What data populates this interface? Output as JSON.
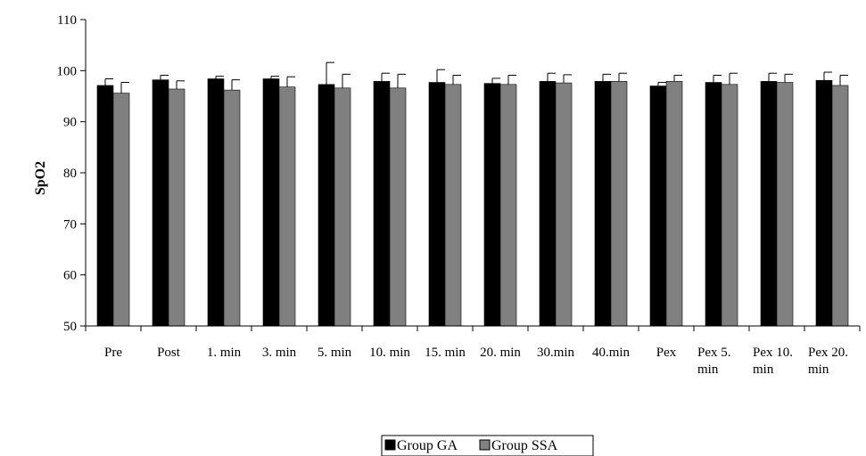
{
  "chart_data": {
    "type": "bar",
    "title": "",
    "xlabel": "",
    "ylabel": "SpO2",
    "ylim": [
      50,
      110
    ],
    "yticks": [
      50,
      60,
      70,
      80,
      90,
      100,
      110
    ],
    "grid": false,
    "legend_position": "bottom-center",
    "categories": [
      [
        "Pre"
      ],
      [
        "Post"
      ],
      [
        "1. min"
      ],
      [
        "3. min"
      ],
      [
        "5. min"
      ],
      [
        "10. min"
      ],
      [
        "15. min"
      ],
      [
        "20. min"
      ],
      [
        "30.min"
      ],
      [
        "40.min"
      ],
      [
        "Pex"
      ],
      [
        "Pex 5.",
        "min"
      ],
      [
        "Pex 10.",
        "min"
      ],
      [
        "Pex 20.",
        "min"
      ]
    ],
    "series": [
      {
        "name": "Group GA",
        "color": "#000000",
        "values": [
          97.1,
          98.2,
          98.4,
          98.4,
          97.3,
          97.9,
          97.7,
          97.5,
          97.9,
          97.9,
          97.0,
          97.7,
          97.9,
          98.1
        ],
        "error": [
          1.3,
          0.9,
          0.5,
          0.5,
          4.3,
          1.6,
          2.5,
          1.0,
          1.6,
          1.4,
          0.7,
          1.4,
          1.6,
          1.6
        ]
      },
      {
        "name": "Group SSA",
        "color": "#808080",
        "values": [
          95.6,
          96.4,
          96.2,
          96.8,
          96.6,
          96.6,
          97.3,
          97.3,
          97.6,
          97.9,
          97.9,
          97.3,
          97.7,
          97.1
        ],
        "error": [
          2.1,
          1.6,
          2.0,
          2.0,
          2.7,
          2.7,
          1.8,
          1.8,
          1.6,
          1.6,
          1.2,
          2.2,
          1.6,
          2.0
        ]
      }
    ]
  }
}
